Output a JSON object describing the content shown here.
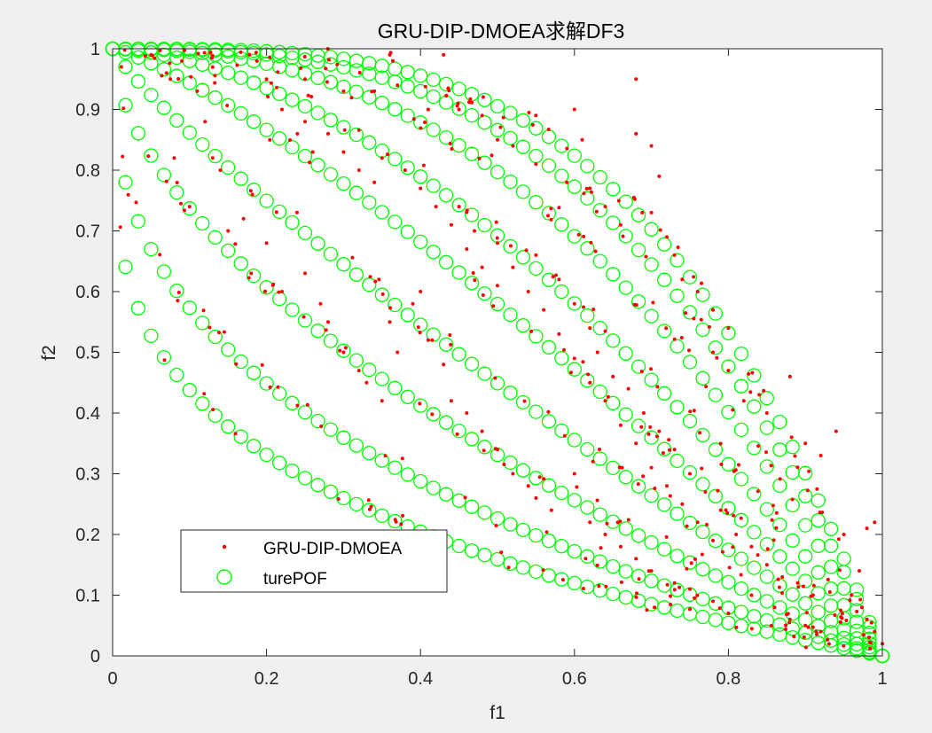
{
  "chart_data": {
    "type": "scatter",
    "title": "GRU-DIP-DMOEA求解DF3",
    "xlabel": "f1",
    "ylabel": "f2",
    "xlim": [
      0,
      1
    ],
    "ylim": [
      0,
      1
    ],
    "xticks": [
      "0",
      "0.2",
      "0.4",
      "0.6",
      "0.8",
      "1"
    ],
    "yticks": [
      "0",
      "0.1",
      "0.2",
      "0.3",
      "0.4",
      "0.5",
      "0.6",
      "0.7",
      "0.8",
      "0.9",
      "1"
    ],
    "grid": false,
    "legend_position": "bottom-left",
    "series": [
      {
        "name": "GRU-DIP-DMOEA",
        "marker": "dot",
        "color": "#ff0000",
        "curve_exponents": [
          0.25,
          0.37,
          0.58,
          0.86,
          1.25,
          1.7,
          2.3,
          2.9,
          3.4
        ],
        "points": [
          [
            0.05,
            0.99
          ],
          [
            0.09,
            0.98
          ],
          [
            0.13,
            0.97
          ],
          [
            0.2,
            0.95
          ],
          [
            0.25,
            0.95
          ],
          [
            0.3,
            0.93
          ],
          [
            0.34,
            0.93
          ],
          [
            0.37,
            0.94
          ],
          [
            0.36,
            0.99
          ],
          [
            0.43,
            0.99
          ],
          [
            0.41,
            0.9
          ],
          [
            0.45,
            0.9
          ],
          [
            0.48,
            0.89
          ],
          [
            0.5,
            0.85
          ],
          [
            0.52,
            0.84
          ],
          [
            0.55,
            0.81
          ],
          [
            0.59,
            0.78
          ],
          [
            0.6,
            0.9
          ],
          [
            0.61,
            0.85
          ],
          [
            0.62,
            0.77
          ],
          [
            0.64,
            0.74
          ],
          [
            0.66,
            0.71
          ],
          [
            0.68,
            0.95
          ],
          [
            0.68,
            0.86
          ],
          [
            0.7,
            0.84
          ],
          [
            0.71,
            0.79
          ],
          [
            0.7,
            0.73
          ],
          [
            0.72,
            0.69
          ],
          [
            0.73,
            0.66
          ],
          [
            0.74,
            0.62
          ],
          [
            0.76,
            0.6
          ],
          [
            0.78,
            0.57
          ],
          [
            0.8,
            0.54
          ],
          [
            0.78,
            0.5
          ],
          [
            0.8,
            0.47
          ],
          [
            0.82,
            0.42
          ],
          [
            0.84,
            0.43
          ],
          [
            0.85,
            0.4
          ],
          [
            0.88,
            0.46
          ],
          [
            0.9,
            0.35
          ],
          [
            0.92,
            0.33
          ],
          [
            0.94,
            0.37
          ],
          [
            0.95,
            0.2
          ],
          [
            0.97,
            0.14
          ],
          [
            0.98,
            0.21
          ],
          [
            0.99,
            0.22
          ],
          [
            0.96,
            0.1
          ],
          [
            0.98,
            0.06
          ],
          [
            0.99,
            0.04
          ],
          [
            1.0,
            0.02
          ],
          [
            0.07,
            0.96
          ],
          [
            0.11,
            0.93
          ],
          [
            0.12,
            0.88
          ],
          [
            0.13,
            0.82
          ],
          [
            0.14,
            0.8
          ],
          [
            0.1,
            0.74
          ],
          [
            0.08,
            0.82
          ],
          [
            0.15,
            0.7
          ],
          [
            0.17,
            0.72
          ],
          [
            0.2,
            0.68
          ],
          [
            0.18,
            0.63
          ],
          [
            0.22,
            0.6
          ],
          [
            0.25,
            0.63
          ],
          [
            0.27,
            0.58
          ],
          [
            0.28,
            0.55
          ],
          [
            0.3,
            0.5
          ],
          [
            0.32,
            0.47
          ],
          [
            0.33,
            0.45
          ],
          [
            0.35,
            0.42
          ],
          [
            0.37,
            0.5
          ],
          [
            0.36,
            0.55
          ],
          [
            0.39,
            0.58
          ],
          [
            0.4,
            0.6
          ],
          [
            0.41,
            0.52
          ],
          [
            0.43,
            0.48
          ],
          [
            0.44,
            0.42
          ],
          [
            0.46,
            0.4
          ],
          [
            0.48,
            0.37
          ],
          [
            0.5,
            0.34
          ],
          [
            0.52,
            0.3
          ],
          [
            0.54,
            0.28
          ],
          [
            0.55,
            0.26
          ],
          [
            0.57,
            0.24
          ],
          [
            0.6,
            0.3
          ],
          [
            0.62,
            0.22
          ],
          [
            0.64,
            0.2
          ],
          [
            0.66,
            0.18
          ],
          [
            0.68,
            0.16
          ],
          [
            0.7,
            0.14
          ],
          [
            0.73,
            0.12
          ],
          [
            0.75,
            0.11
          ],
          [
            0.78,
            0.09
          ],
          [
            0.8,
            0.07
          ],
          [
            0.83,
            0.1
          ],
          [
            0.86,
            0.08
          ],
          [
            0.88,
            0.06
          ],
          [
            0.9,
            0.05
          ],
          [
            0.92,
            0.04
          ],
          [
            0.55,
            0.66
          ],
          [
            0.58,
            0.62
          ],
          [
            0.6,
            0.58
          ],
          [
            0.62,
            0.54
          ],
          [
            0.63,
            0.5
          ],
          [
            0.65,
            0.46
          ],
          [
            0.67,
            0.44
          ],
          [
            0.69,
            0.4
          ],
          [
            0.71,
            0.37
          ],
          [
            0.73,
            0.34
          ],
          [
            0.75,
            0.3
          ],
          [
            0.77,
            0.27
          ],
          [
            0.79,
            0.24
          ],
          [
            0.81,
            0.2
          ],
          [
            0.83,
            0.18
          ],
          [
            0.85,
            0.15
          ],
          [
            0.87,
            0.13
          ],
          [
            0.89,
            0.12
          ],
          [
            0.91,
            0.1
          ],
          [
            0.45,
            0.74
          ],
          [
            0.47,
            0.7
          ],
          [
            0.5,
            0.68
          ],
          [
            0.52,
            0.64
          ],
          [
            0.54,
            0.6
          ],
          [
            0.56,
            0.57
          ],
          [
            0.58,
            0.53
          ],
          [
            0.6,
            0.49
          ],
          [
            0.62,
            0.45
          ],
          [
            0.64,
            0.42
          ],
          [
            0.66,
            0.38
          ],
          [
            0.68,
            0.35
          ],
          [
            0.7,
            0.31
          ],
          [
            0.72,
            0.28
          ],
          [
            0.74,
            0.25
          ],
          [
            0.76,
            0.22
          ],
          [
            0.78,
            0.19
          ],
          [
            0.35,
            0.82
          ],
          [
            0.38,
            0.8
          ],
          [
            0.4,
            0.77
          ],
          [
            0.42,
            0.74
          ],
          [
            0.44,
            0.71
          ],
          [
            0.46,
            0.67
          ],
          [
            0.48,
            0.64
          ],
          [
            0.5,
            0.61
          ],
          [
            0.25,
            0.88
          ],
          [
            0.28,
            0.86
          ],
          [
            0.3,
            0.83
          ],
          [
            0.32,
            0.8
          ],
          [
            0.34,
            0.78
          ],
          [
            0.22,
            0.9
          ],
          [
            0.24,
            0.86
          ],
          [
            0.26,
            0.83
          ]
        ]
      },
      {
        "name": "turePOF",
        "marker": "circle",
        "color": "#00ff00",
        "curve_exponents": [
          0.25,
          0.37,
          0.58,
          0.86,
          1.25,
          1.7,
          2.3,
          2.9,
          3.4
        ],
        "points_per_curve": 60,
        "equation": "f2 = 1 - f1^p"
      }
    ]
  }
}
